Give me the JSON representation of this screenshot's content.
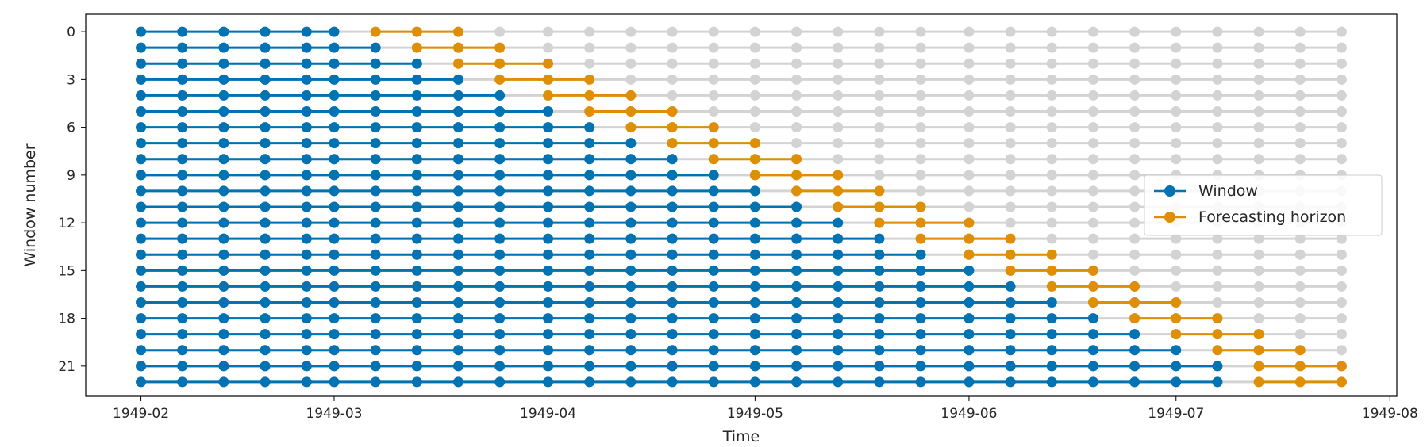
{
  "chart_data": {
    "type": "scatter",
    "xlabel": "Time",
    "ylabel": "Window number",
    "x_tick_labels": [
      "1949-02",
      "1949-03",
      "1949-04",
      "1949-05",
      "1949-06",
      "1949-07",
      "1949-08"
    ],
    "y_tick_labels": [
      "0",
      "3",
      "6",
      "9",
      "12",
      "15",
      "18",
      "21"
    ],
    "x_tick_dates": [
      "1949-02-01",
      "1949-03-01",
      "1949-04-01",
      "1949-05-01",
      "1949-06-01",
      "1949-07-01",
      "1949-08-01"
    ],
    "y_ticks": [
      0,
      3,
      6,
      9,
      12,
      15,
      18,
      21
    ],
    "xlim": [
      "1949-01-24",
      "1949-08-02"
    ],
    "ylim": [
      22.9,
      -1.1
    ],
    "grid": false,
    "legend_position": "center-right",
    "series": [
      {
        "name": "Window",
        "color": "#0173b2"
      },
      {
        "name": "Forecasting horizon",
        "color": "#de8f05"
      }
    ],
    "background_series_color": "#d3d3d3",
    "time_points": [
      "1949-02-01",
      "1949-02-07",
      "1949-02-13",
      "1949-02-19",
      "1949-02-25",
      "1949-03-01",
      "1949-03-07",
      "1949-03-13",
      "1949-03-19",
      "1949-03-25",
      "1949-04-01",
      "1949-04-07",
      "1949-04-13",
      "1949-04-19",
      "1949-04-25",
      "1949-05-01",
      "1949-05-07",
      "1949-05-13",
      "1949-05-19",
      "1949-05-25",
      "1949-06-01",
      "1949-06-07",
      "1949-06-13",
      "1949-06-19",
      "1949-06-25",
      "1949-07-01",
      "1949-07-07",
      "1949-07-13",
      "1949-07-19",
      "1949-07-25"
    ],
    "windows": [
      {
        "window": 0,
        "train_end_index": 5,
        "fh_indices": [
          6,
          7,
          8
        ]
      },
      {
        "window": 1,
        "train_end_index": 6,
        "fh_indices": [
          7,
          8,
          9
        ]
      },
      {
        "window": 2,
        "train_end_index": 7,
        "fh_indices": [
          8,
          9,
          10
        ]
      },
      {
        "window": 3,
        "train_end_index": 8,
        "fh_indices": [
          9,
          10,
          11
        ]
      },
      {
        "window": 4,
        "train_end_index": 9,
        "fh_indices": [
          10,
          11,
          12
        ]
      },
      {
        "window": 5,
        "train_end_index": 10,
        "fh_indices": [
          11,
          12,
          13
        ]
      },
      {
        "window": 6,
        "train_end_index": 11,
        "fh_indices": [
          12,
          13,
          14
        ]
      },
      {
        "window": 7,
        "train_end_index": 12,
        "fh_indices": [
          13,
          14,
          15
        ]
      },
      {
        "window": 8,
        "train_end_index": 13,
        "fh_indices": [
          14,
          15,
          16
        ]
      },
      {
        "window": 9,
        "train_end_index": 14,
        "fh_indices": [
          15,
          16,
          17
        ]
      },
      {
        "window": 10,
        "train_end_index": 15,
        "fh_indices": [
          16,
          17,
          18
        ]
      },
      {
        "window": 11,
        "train_end_index": 16,
        "fh_indices": [
          17,
          18,
          19
        ]
      },
      {
        "window": 12,
        "train_end_index": 17,
        "fh_indices": [
          18,
          19,
          20
        ]
      },
      {
        "window": 13,
        "train_end_index": 18,
        "fh_indices": [
          19,
          20,
          21
        ]
      },
      {
        "window": 14,
        "train_end_index": 19,
        "fh_indices": [
          20,
          21,
          22
        ]
      },
      {
        "window": 15,
        "train_end_index": 20,
        "fh_indices": [
          21,
          22,
          23
        ]
      },
      {
        "window": 16,
        "train_end_index": 21,
        "fh_indices": [
          22,
          23,
          24
        ]
      },
      {
        "window": 17,
        "train_end_index": 22,
        "fh_indices": [
          23,
          24,
          25
        ]
      },
      {
        "window": 18,
        "train_end_index": 23,
        "fh_indices": [
          24,
          25,
          26
        ]
      },
      {
        "window": 19,
        "train_end_index": 24,
        "fh_indices": [
          25,
          26,
          27
        ]
      },
      {
        "window": 20,
        "train_end_index": 25,
        "fh_indices": [
          26,
          27,
          28
        ]
      },
      {
        "window": 21,
        "train_end_index": 26,
        "fh_indices": [
          27,
          28,
          29
        ]
      },
      {
        "window": 22,
        "train_end_index": 26,
        "fh_indices": [
          27,
          28,
          29
        ]
      }
    ]
  }
}
